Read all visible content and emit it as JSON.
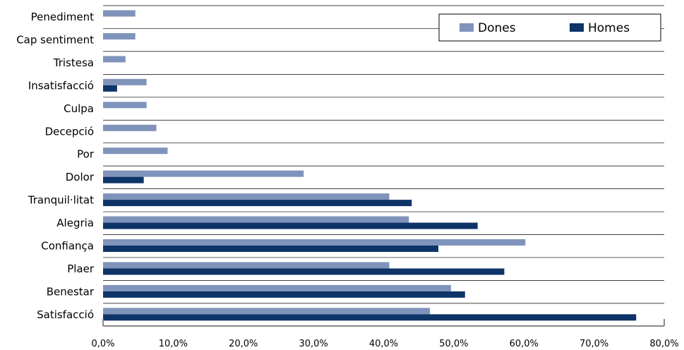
{
  "chart_data": {
    "type": "bar",
    "orientation": "horizontal",
    "categories": [
      "Penediment",
      "Cap sentiment",
      "Tristesa",
      "Insatisfacció",
      "Culpa",
      "Decepció",
      "Por",
      "Dolor",
      "Tranquil·litat",
      "Alegria",
      "Confiança",
      "Plaer",
      "Benestar",
      "Satisfacció"
    ],
    "series": [
      {
        "name": "Dones",
        "color": "#7f93bb",
        "values": [
          4.6,
          4.6,
          3.2,
          6.2,
          6.2,
          7.6,
          9.2,
          28.6,
          40.8,
          43.6,
          60.2,
          40.8,
          49.6,
          46.6
        ]
      },
      {
        "name": "Homes",
        "color": "#0e3468",
        "values": [
          0,
          0,
          0,
          2.0,
          0,
          0,
          0,
          5.8,
          44.0,
          53.4,
          47.8,
          57.2,
          51.6,
          76.0
        ]
      }
    ],
    "xlim": [
      0,
      80
    ],
    "xticks": [
      "0,0%",
      "10,0%",
      "20,0%",
      "30,0%",
      "40,0%",
      "50,0%",
      "60,0%",
      "70,0%",
      "80,0%"
    ],
    "grid": "horizontal",
    "legend_position": "top-right"
  }
}
